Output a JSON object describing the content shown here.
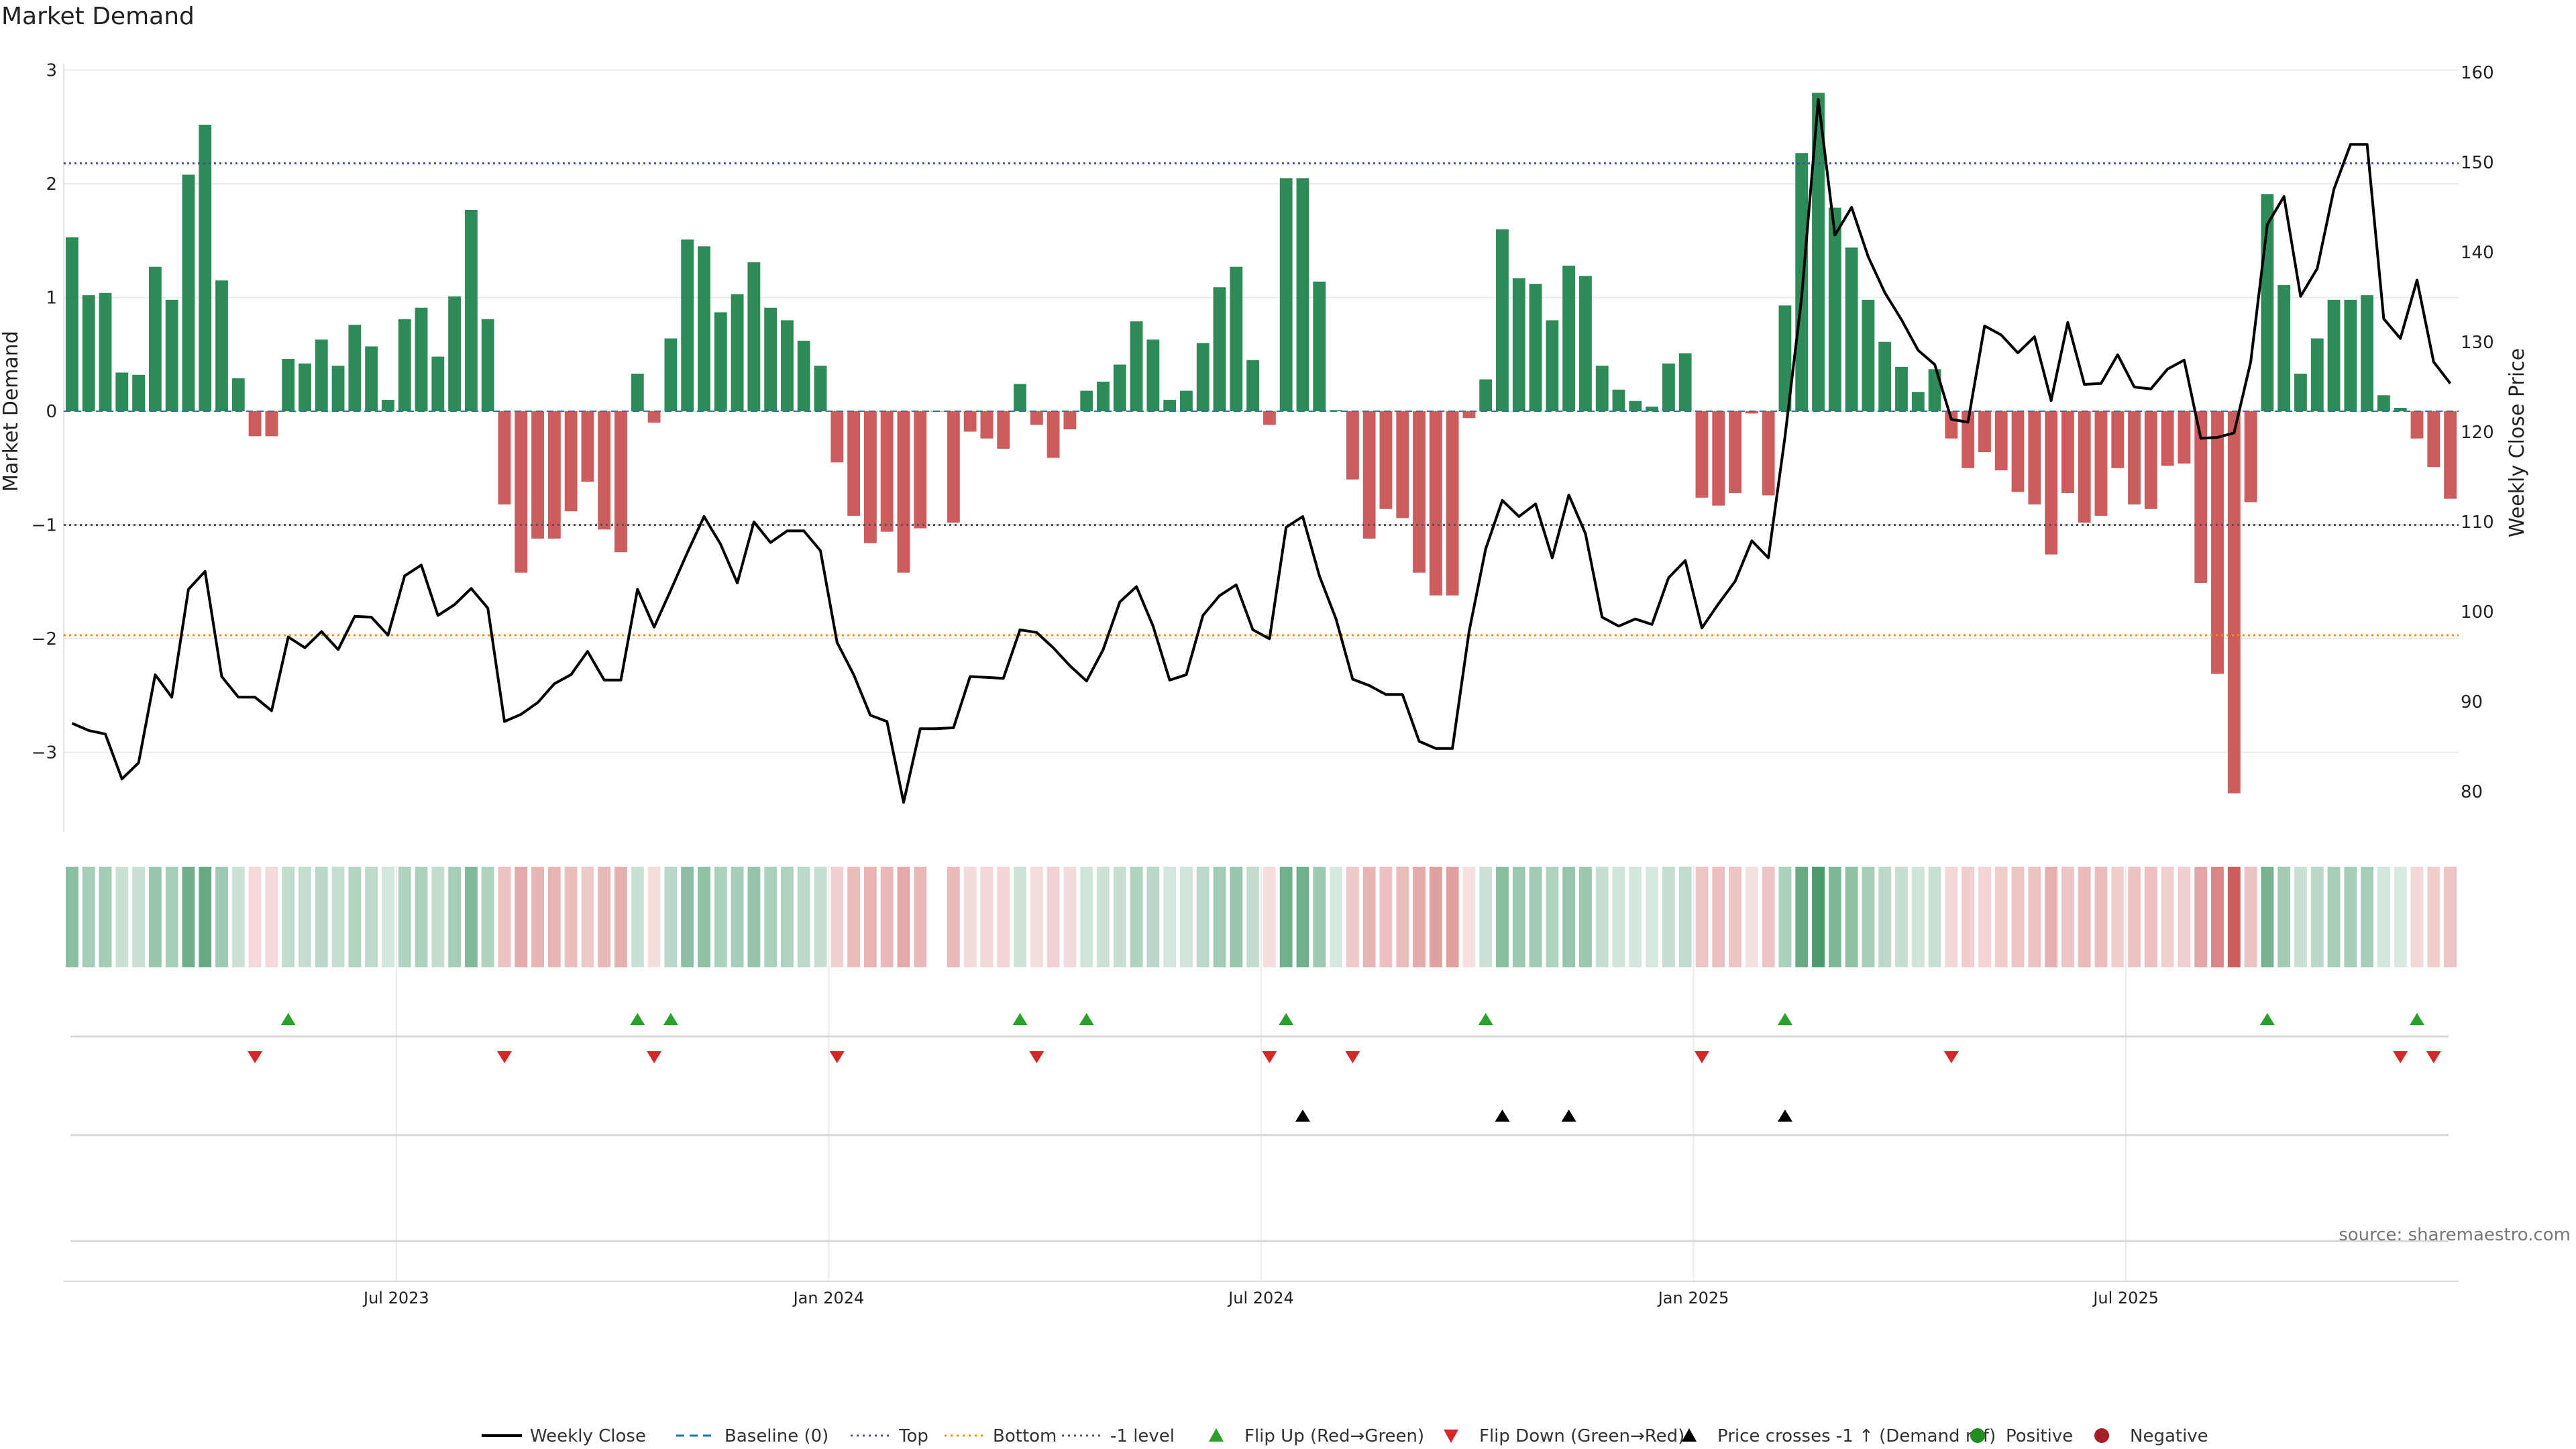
{
  "title": "Market Demand",
  "source_label": "source: sharemaestro.com",
  "colors": {
    "pos_bar": "#2e8b57",
    "neg_bar": "#cd5c5c",
    "price": "#000000",
    "top": "#4b4ba8",
    "bottom": "#ff8c00",
    "minus1": "#555555",
    "baseline": "#1f77b4",
    "flip_up": "#2ca02c",
    "flip_down": "#d62728",
    "cross": "#000000",
    "positive": "#228b22",
    "negative": "#a41e22"
  },
  "legend": [
    {
      "label": "Weekly Close",
      "kind": "line",
      "color": "#000000"
    },
    {
      "label": "Baseline (0)",
      "kind": "dash",
      "color": "#1f77b4"
    },
    {
      "label": "Top",
      "kind": "dot",
      "color": "#4b4ba8"
    },
    {
      "label": "Bottom",
      "kind": "dot",
      "color": "#ff8c00"
    },
    {
      "label": "-1 level",
      "kind": "dot",
      "color": "#555555"
    },
    {
      "label": "Flip Up (Red→Green)",
      "kind": "up",
      "color": "#2ca02c"
    },
    {
      "label": "Flip Down (Green→Red)",
      "kind": "down",
      "color": "#d62728"
    },
    {
      "label": "Price crosses -1 ↑ (Demand ref)",
      "kind": "up",
      "color": "#000000"
    },
    {
      "label": "Positive",
      "kind": "circle",
      "color": "#228b22"
    },
    {
      "label": "Negative",
      "kind": "circle",
      "color": "#a41e22"
    }
  ],
  "chart_data": {
    "type": "bar",
    "ylabel": "Market Demand",
    "y2label": "Weekly Close Price",
    "ylim": [
      -3.7,
      3.0
    ],
    "y2lim": [
      75,
      160
    ],
    "yticks": [
      -3,
      -2,
      -1,
      0,
      1,
      2,
      3
    ],
    "yticklabels": [
      "−3",
      "−2",
      "−1",
      "0",
      "1",
      "2",
      "3"
    ],
    "y2ticks": [
      80,
      90,
      100,
      110,
      120,
      130,
      140,
      150,
      160
    ],
    "xticks": [
      {
        "week": 20,
        "label": "Jul 2023"
      },
      {
        "week": 46,
        "label": "Jan 2024"
      },
      {
        "week": 72,
        "label": "Jul 2024"
      },
      {
        "week": 98,
        "label": "Jan 2025"
      },
      {
        "week": 124,
        "label": "Jul 2025"
      }
    ],
    "reference_lines": {
      "top": 2.18,
      "bottom": -1.97,
      "minus1": -1.0,
      "baseline": 0
    },
    "demand": [
      1.53,
      1.02,
      1.04,
      0.34,
      0.32,
      1.27,
      0.98,
      2.08,
      2.52,
      1.15,
      0.29,
      -0.22,
      -0.22,
      0.46,
      0.42,
      0.63,
      0.4,
      0.76,
      0.57,
      0.1,
      0.81,
      0.91,
      0.48,
      1.01,
      1.77,
      0.81,
      -0.82,
      -1.42,
      -1.12,
      -1.12,
      -0.88,
      -0.62,
      -1.04,
      -1.24,
      0.33,
      -0.1,
      0.64,
      1.51,
      1.45,
      0.87,
      1.03,
      1.31,
      0.91,
      0.8,
      0.62,
      0.4,
      -0.45,
      -0.92,
      -1.16,
      -1.06,
      -1.42,
      -1.03,
      0.0,
      -0.98,
      -0.18,
      -0.24,
      -0.33,
      0.24,
      -0.12,
      -0.41,
      -0.16,
      0.18,
      0.26,
      0.41,
      0.79,
      0.63,
      0.1,
      0.18,
      0.6,
      1.09,
      1.27,
      0.45,
      -0.12,
      2.05,
      2.05,
      1.14,
      0.01,
      -0.6,
      -1.12,
      -0.86,
      -0.94,
      -1.42,
      -1.62,
      -1.62,
      -0.06,
      0.28,
      1.6,
      1.17,
      1.12,
      0.8,
      1.28,
      1.19,
      0.4,
      0.19,
      0.09,
      0.04,
      0.42,
      0.51,
      -0.76,
      -0.83,
      -0.72,
      -0.02,
      -0.74,
      0.93,
      2.27,
      2.8,
      1.79,
      1.44,
      0.98,
      0.61,
      0.39,
      0.17,
      0.37,
      -0.24,
      -0.5,
      -0.36,
      -0.52,
      -0.71,
      -0.82,
      -1.26,
      -0.72,
      -0.98,
      -0.92,
      -0.5,
      -0.82,
      -0.86,
      -0.48,
      -0.46,
      -1.51,
      -2.31,
      -3.36,
      -0.8,
      1.91,
      1.11,
      0.33,
      0.64,
      0.98,
      0.98,
      1.02,
      0.14,
      0.03,
      -0.24,
      -0.49,
      -0.77
    ],
    "price": [
      87.6,
      86.8,
      86.4,
      81.4,
      83.2,
      93.0,
      90.5,
      102.5,
      104.5,
      92.8,
      90.5,
      90.5,
      89.0,
      97.2,
      96.0,
      97.8,
      95.8,
      99.5,
      99.4,
      97.4,
      104.0,
      105.2,
      99.6,
      100.8,
      102.6,
      100.4,
      87.8,
      88.6,
      89.9,
      92.0,
      93.0,
      95.6,
      92.4,
      92.4,
      102.5,
      98.3,
      102.4,
      106.6,
      110.6,
      107.5,
      103.2,
      110.0,
      107.7,
      109.0,
      109.0,
      106.8,
      96.6,
      93.0,
      88.5,
      87.8,
      78.8,
      87.0,
      87.0,
      87.1,
      92.8,
      92.7,
      92.6,
      98.0,
      97.7,
      96.0,
      94.0,
      92.3,
      95.8,
      101.1,
      102.8,
      98.4,
      92.4,
      93.0,
      99.6,
      101.8,
      103.0,
      98.0,
      97.0,
      109.4,
      110.6,
      104.0,
      99.2,
      92.5,
      91.8,
      90.8,
      90.8,
      85.6,
      84.8,
      84.8,
      97.8,
      107.0,
      112.4,
      110.6,
      112.0,
      106.0,
      113.0,
      108.7,
      99.4,
      98.4,
      99.2,
      98.6,
      103.8,
      105.7,
      98.2,
      100.9,
      103.4,
      107.9,
      106.0,
      119.5,
      135.0,
      157.0,
      141.9,
      145.0,
      139.5,
      135.5,
      132.5,
      129.1,
      127.5,
      121.4,
      121.1,
      131.8,
      130.8,
      128.8,
      130.6,
      123.5,
      132.2,
      125.3,
      125.4,
      128.6,
      125.0,
      124.8,
      127.0,
      128.0,
      119.3,
      119.4,
      119.9,
      127.8,
      143.1,
      146.2,
      135.1,
      138.2,
      147.0,
      152.0,
      152.0,
      132.6,
      130.4,
      136.9,
      127.8,
      125.4
    ],
    "heat_strip": [
      0.68,
      0.45,
      0.47,
      0.15,
      0.14,
      0.56,
      0.44,
      0.92,
      1.0,
      0.51,
      0.13,
      0.1,
      0.1,
      0.2,
      0.19,
      0.28,
      0.18,
      0.34,
      0.25,
      0.06,
      0.36,
      0.4,
      0.21,
      0.45,
      0.78,
      0.36,
      0.36,
      0.63,
      0.5,
      0.5,
      0.39,
      0.28,
      0.46,
      0.55,
      0.15,
      0.05,
      0.28,
      0.67,
      0.64,
      0.39,
      0.46,
      0.58,
      0.4,
      0.36,
      0.27,
      0.18,
      0.2,
      0.41,
      0.51,
      0.47,
      0.63,
      0.46,
      0.0,
      0.44,
      0.08,
      0.11,
      0.15,
      0.11,
      0.05,
      0.18,
      0.07,
      0.08,
      0.12,
      0.18,
      0.35,
      0.28,
      0.05,
      0.08,
      0.27,
      0.48,
      0.56,
      0.2,
      0.05,
      0.91,
      0.91,
      0.51,
      0.02,
      0.27,
      0.5,
      0.38,
      0.42,
      0.63,
      0.72,
      0.72,
      0.03,
      0.12,
      0.71,
      0.52,
      0.5,
      0.36,
      0.57,
      0.53,
      0.18,
      0.08,
      0.04,
      0.02,
      0.19,
      0.23,
      0.34,
      0.37,
      0.32,
      0.01,
      0.33,
      0.41,
      1.0,
      1.24,
      0.79,
      0.64,
      0.44,
      0.27,
      0.17,
      0.08,
      0.16,
      0.11,
      0.22,
      0.16,
      0.23,
      0.32,
      0.36,
      0.56,
      0.32,
      0.44,
      0.41,
      0.22,
      0.36,
      0.38,
      0.21,
      0.2,
      0.67,
      1.03,
      1.49,
      0.36,
      0.85,
      0.49,
      0.15,
      0.28,
      0.44,
      0.44,
      0.45,
      0.06,
      0.01,
      0.11,
      0.22,
      0.34
    ],
    "flip_up_weeks": [
      13,
      34,
      36,
      57,
      61,
      73,
      85,
      103,
      132,
      141
    ],
    "flip_down_weeks": [
      11,
      26,
      35,
      46,
      58,
      72,
      77,
      98,
      113,
      140,
      142
    ],
    "price_cross_weeks": [
      74,
      86,
      90,
      103
    ]
  }
}
